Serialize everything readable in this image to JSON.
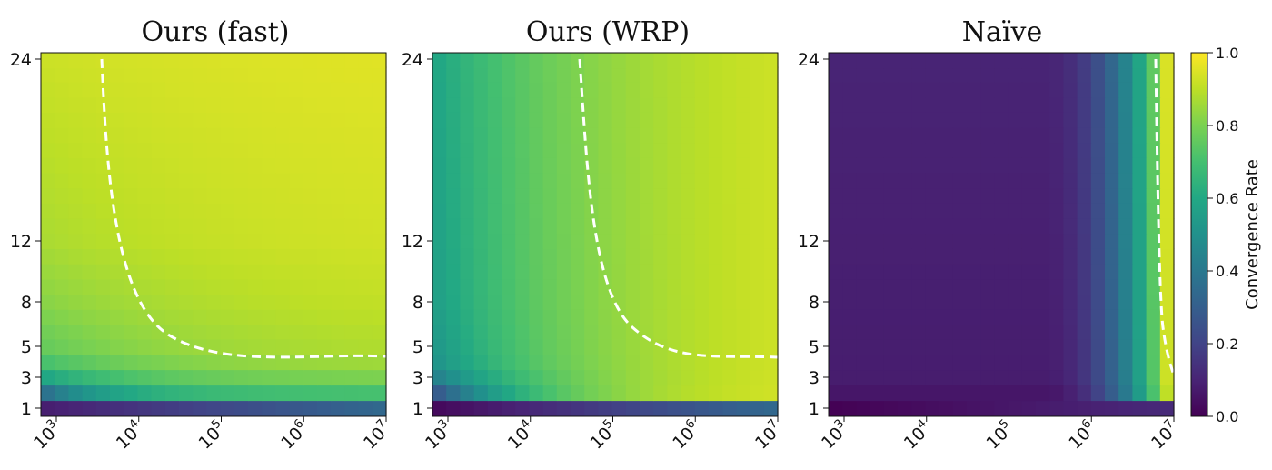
{
  "chart_data": {
    "type": "heatmap",
    "colormap": "viridis",
    "panels": [
      {
        "title": "Ours (fast)",
        "x_range": [
          1000,
          10000000
        ],
        "x_scale": "log",
        "x_ticks": [
          "10^3",
          "10^4",
          "10^5",
          "10^6",
          "10^7"
        ],
        "y_ticks": [
          "1",
          "3",
          "5",
          "8",
          "12",
          "24"
        ],
        "row_level": {
          "1": 0.12,
          "2": 0.35,
          "3": 0.58,
          "4": 0.7,
          "5": 0.76,
          "8": 0.82,
          "12": 0.87,
          "24": 0.92
        },
        "x_growth": 0.55,
        "contour": "dashed white line: from x≈2.5e3 at y=24 curving down to y≈4.3 at x=1e7"
      },
      {
        "title": "Ours (WRP)",
        "x_range": [
          1000,
          10000000
        ],
        "x_scale": "log",
        "x_ticks": [
          "10^3",
          "10^4",
          "10^5",
          "10^6",
          "10^7"
        ],
        "y_ticks": [
          "1",
          "3",
          "5",
          "8",
          "12",
          "24"
        ],
        "row_level": {
          "1": 0.05,
          "2": 0.25,
          "3": 0.42,
          "4": 0.5,
          "5": 0.52,
          "8": 0.55,
          "12": 0.56,
          "24": 0.58
        },
        "x_growth": 0.95,
        "contour": "dashed white line: from x≈3.5e4 at y=24 curving down to y≈4.3 at x=1e7"
      },
      {
        "title": "Naïve",
        "x_range": [
          1000,
          10000000
        ],
        "x_scale": "log",
        "x_ticks": [
          "10^3",
          "10^4",
          "10^5",
          "10^6",
          "10^7"
        ],
        "y_ticks": [
          "1",
          "3",
          "5",
          "8",
          "12",
          "24"
        ],
        "row_level": {
          "1": 0.0,
          "2": 0.06,
          "3": 0.08,
          "24": 0.1
        },
        "x_growth": 0.0,
        "contour": "dashed white line near x≈6e6, from y=24 down to y≈3"
      }
    ],
    "colorbar": {
      "label": "Convergence Rate",
      "range": [
        0.0,
        1.0
      ],
      "ticks": [
        "0.0",
        "0.2",
        "0.4",
        "0.6",
        "0.8",
        "1.0"
      ]
    },
    "grid": false
  }
}
